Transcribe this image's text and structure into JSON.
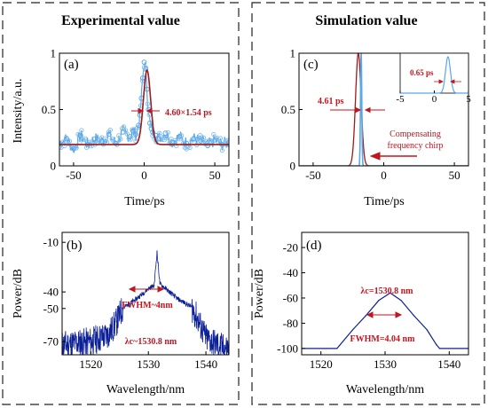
{
  "colors": {
    "experimental_line": "#5aa8e6",
    "experimental_marker": "#8cc2ef",
    "fit": "#9e1b1b",
    "annotation": "#c0161f",
    "spectrum": "#0b1f96",
    "axis": "#000000"
  },
  "headers": {
    "left": "Experimental value",
    "right": "Simulation value"
  },
  "chart_data": [
    {
      "id": "a",
      "panel_label": "(a)",
      "type": "line",
      "xlabel": "Time/ps",
      "ylabel": "Intensity/a.u.",
      "xlim": [
        -60,
        60
      ],
      "ylim": [
        0,
        1
      ],
      "xticks": [
        -50,
        0,
        50
      ],
      "yticks": [
        0,
        0.5,
        1
      ],
      "ytick_labels": [
        "0",
        "0.5",
        "1"
      ],
      "series": [
        {
          "role": "measured",
          "x": [
            -60,
            -55,
            -50,
            -45,
            -40,
            -35,
            -30,
            -25,
            -20,
            -15,
            -10,
            -8,
            -6,
            -4,
            -3,
            -2,
            -1,
            0,
            1,
            2,
            3,
            4,
            5,
            6,
            8,
            10,
            15,
            20,
            25,
            30,
            35,
            40,
            45,
            50,
            55,
            60
          ],
          "y": [
            0.2,
            0.24,
            0.15,
            0.27,
            0.19,
            0.24,
            0.22,
            0.28,
            0.2,
            0.3,
            0.26,
            0.31,
            0.28,
            0.36,
            0.45,
            0.6,
            0.78,
            0.92,
            0.86,
            0.68,
            0.5,
            0.38,
            0.33,
            0.3,
            0.27,
            0.24,
            0.29,
            0.21,
            0.26,
            0.2,
            0.24,
            0.22,
            0.18,
            0.23,
            0.19,
            0.21
          ]
        },
        {
          "role": "fit",
          "baseline": 0.19,
          "peak": 0.85,
          "center": 2,
          "fwhm": 4.6
        }
      ],
      "annotations": [
        {
          "text": "4.60×1.54 ps",
          "x": 9,
          "y": 0.43
        }
      ]
    },
    {
      "id": "c",
      "panel_label": "(c)",
      "type": "line",
      "xlabel": "Time/ps",
      "ylabel": "",
      "xlim": [
        -60,
        60
      ],
      "ylim": [
        0,
        1
      ],
      "xticks": [
        -50,
        0,
        50
      ],
      "yticks": [
        0,
        0.5,
        1
      ],
      "ytick_labels": [
        "0",
        "0.5",
        "1"
      ],
      "series": [
        {
          "role": "chirped",
          "center": -18,
          "peak": 1.0,
          "fwhm": 4.61
        },
        {
          "role": "compressed",
          "center": -16,
          "peak": 1.0,
          "fwhm": 0.65
        }
      ],
      "annotations": [
        {
          "text": "4.61 ps"
        },
        {
          "text": "Compensating"
        },
        {
          "text": "frequency chirp"
        }
      ],
      "inset": {
        "xlim": [
          -5,
          5
        ],
        "ylim": [
          0,
          1
        ],
        "xticks": [
          -5,
          0,
          5
        ],
        "peak_x": 2,
        "fwhm": 0.65,
        "annotation": "0.65 ps"
      }
    },
    {
      "id": "b",
      "panel_label": "(b)",
      "type": "line",
      "xlabel": "Wavelength/nm",
      "ylabel": "Power/dB",
      "xlim": [
        1515,
        1544
      ],
      "ylim": [
        -78,
        -4
      ],
      "xticks": [
        1520,
        1530,
        1540
      ],
      "yticks": [
        -70,
        -50,
        -40,
        -10
      ],
      "series": [
        {
          "role": "measured_spectrum",
          "x": [
            1515,
            1520,
            1523,
            1524.5,
            1525.5,
            1528,
            1530,
            1531,
            1531.5,
            1532,
            1533,
            1535,
            1537.5,
            1538.5,
            1540,
            1543
          ],
          "y": [
            -72,
            -70,
            -66,
            -58,
            -50,
            -44,
            -38,
            -36,
            -16,
            -35,
            -38,
            -44,
            -49,
            -56,
            -68,
            -74
          ]
        }
      ],
      "annotations": [
        {
          "text": "FWHM~4nm"
        },
        {
          "text": "λc~1530.8 nm"
        }
      ]
    },
    {
      "id": "d",
      "panel_label": "(d)",
      "type": "line",
      "xlabel": "Wavelength/nm",
      "ylabel": "Power/dB",
      "xlim": [
        1517,
        1543
      ],
      "ylim": [
        -105,
        -8
      ],
      "xticks": [
        1520,
        1530,
        1540
      ],
      "yticks": [
        -100,
        -80,
        -60,
        -40,
        -20
      ],
      "series": [
        {
          "role": "simulated_spectrum",
          "x": [
            1517,
            1522.5,
            1523,
            1525,
            1527,
            1529,
            1530.8,
            1532.5,
            1534.5,
            1536.5,
            1538,
            1538.5,
            1543
          ],
          "y": [
            -100,
            -100,
            -97,
            -85,
            -74,
            -62,
            -56,
            -62,
            -74,
            -85,
            -97,
            -100,
            -100
          ]
        }
      ],
      "annotations": [
        {
          "text": "λc=1530.8 nm"
        },
        {
          "text": "FWHM=4.04 nm"
        }
      ]
    }
  ]
}
